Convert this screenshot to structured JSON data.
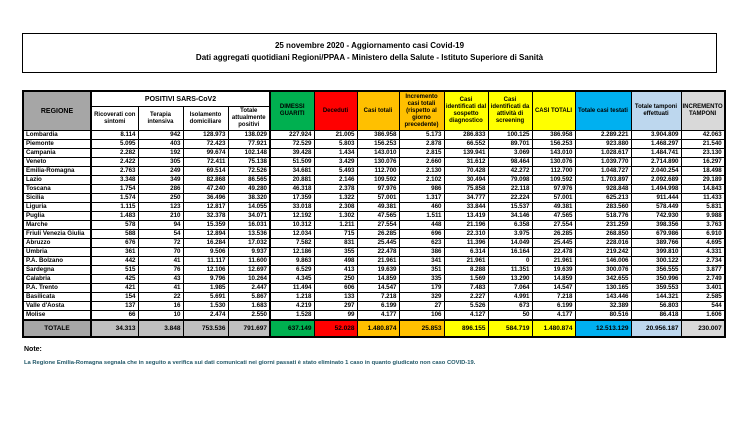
{
  "title": {
    "line1": "25 novembre 2020 - Aggiornamento casi Covid-19",
    "line2": "Dati aggregati quotidiani Regioni/PPAA - Ministero della Salute - Istituto Superiore di Sanità"
  },
  "table": {
    "region_header": "REGIONE",
    "group_header": "POSITIVI SARS-CoV2",
    "columns": [
      {
        "label": "Ricoverati con sintomi",
        "header_bg": "#FFFFFF",
        "total_bg": "#BFBFBF",
        "in_group": true
      },
      {
        "label": "Terapia intensiva",
        "header_bg": "#FFFFFF",
        "total_bg": "#BFBFBF",
        "in_group": true
      },
      {
        "label": "Isolamento domiciliare",
        "header_bg": "#FFFFFF",
        "total_bg": "#BFBFBF",
        "in_group": true
      },
      {
        "label": "Totale attualmente positivi",
        "header_bg": "#FFFFFF",
        "total_bg": "#BFBFBF",
        "in_group": true
      },
      {
        "label": "DIMESSI GUARITI",
        "header_bg": "#00B050",
        "total_bg": "#00B050",
        "in_group": false
      },
      {
        "label": "Deceduti",
        "header_bg": "#FF0000",
        "total_bg": "#FF0000",
        "in_group": false
      },
      {
        "label": "Casi totali",
        "header_bg": "#FFC000",
        "total_bg": "#FFC000",
        "in_group": false
      },
      {
        "label": "Incremento casi totali (rispetto al giorno precedente)",
        "header_bg": "#FFC000",
        "total_bg": "#FFC000",
        "in_group": false
      },
      {
        "label": "Casi identificati dal sospetto diagnostico",
        "header_bg": "#FFFF00",
        "total_bg": "#FFFF00",
        "in_group": false
      },
      {
        "label": "Casi identificati da attività di screening",
        "header_bg": "#FFFF00",
        "total_bg": "#FFFF00",
        "in_group": false
      },
      {
        "label": "CASI TOTALI",
        "header_bg": "#FFFF00",
        "total_bg": "#FFFF00",
        "in_group": false
      },
      {
        "label": "Totale casi testati",
        "header_bg": "#00B0F0",
        "total_bg": "#00B0F0",
        "in_group": false
      },
      {
        "label": "Totale tamponi effettuati",
        "header_bg": "#BDD7EE",
        "total_bg": "#BDD7EE",
        "in_group": false
      },
      {
        "label": "INCREMENTO TAMPONI",
        "header_bg": "#D9D9D9",
        "total_bg": "#D9D9D9",
        "in_group": false
      }
    ],
    "rows": [
      {
        "region": "Lombardia",
        "values": [
          "8.114",
          "942",
          "128.973",
          "138.029",
          "227.924",
          "21.005",
          "386.958",
          "5.173",
          "286.833",
          "100.125",
          "386.958",
          "2.289.221",
          "3.904.809",
          "42.063"
        ]
      },
      {
        "region": "Piemonte",
        "values": [
          "5.095",
          "403",
          "72.423",
          "77.921",
          "72.529",
          "5.803",
          "156.253",
          "2.878",
          "66.552",
          "89.701",
          "156.253",
          "923.880",
          "1.468.297",
          "21.540"
        ]
      },
      {
        "region": "Campania",
        "values": [
          "2.282",
          "192",
          "99.674",
          "102.148",
          "39.428",
          "1.434",
          "143.010",
          "2.815",
          "139.941",
          "3.069",
          "143.010",
          "1.028.617",
          "1.484.741",
          "23.130"
        ]
      },
      {
        "region": "Veneto",
        "values": [
          "2.422",
          "305",
          "72.411",
          "75.138",
          "51.509",
          "3.429",
          "130.076",
          "2.660",
          "31.612",
          "98.464",
          "130.076",
          "1.039.770",
          "2.714.890",
          "16.297"
        ]
      },
      {
        "region": "Emilia-Romagna",
        "values": [
          "2.763",
          "249",
          "69.514",
          "72.526",
          "34.681",
          "5.493",
          "112.700",
          "2.130",
          "70.428",
          "42.272",
          "112.700",
          "1.048.727",
          "2.040.254",
          "18.498"
        ]
      },
      {
        "region": "Lazio",
        "values": [
          "3.348",
          "349",
          "82.868",
          "86.565",
          "20.881",
          "2.146",
          "109.592",
          "2.102",
          "30.494",
          "79.098",
          "109.592",
          "1.703.897",
          "2.092.689",
          "29.189"
        ]
      },
      {
        "region": "Toscana",
        "values": [
          "1.754",
          "286",
          "47.240",
          "49.280",
          "46.318",
          "2.378",
          "97.976",
          "986",
          "75.858",
          "22.118",
          "97.976",
          "928.848",
          "1.494.998",
          "14.843"
        ]
      },
      {
        "region": "Sicilia",
        "values": [
          "1.574",
          "250",
          "36.496",
          "38.320",
          "17.359",
          "1.322",
          "57.001",
          "1.317",
          "34.777",
          "22.224",
          "57.001",
          "625.213",
          "911.444",
          "11.433"
        ]
      },
      {
        "region": "Liguria",
        "values": [
          "1.115",
          "123",
          "12.817",
          "14.055",
          "33.018",
          "2.308",
          "49.381",
          "460",
          "33.844",
          "15.537",
          "49.381",
          "283.560",
          "578.449",
          "5.831"
        ]
      },
      {
        "region": "Puglia",
        "values": [
          "1.483",
          "210",
          "32.378",
          "34.071",
          "12.192",
          "1.302",
          "47.565",
          "1.511",
          "13.419",
          "34.146",
          "47.565",
          "518.776",
          "742.930",
          "9.988"
        ]
      },
      {
        "region": "Marche",
        "values": [
          "578",
          "94",
          "15.359",
          "16.031",
          "10.312",
          "1.211",
          "27.554",
          "448",
          "21.196",
          "6.358",
          "27.554",
          "231.259",
          "398.356",
          "3.763"
        ]
      },
      {
        "region": "Friuli Venezia Giulia",
        "values": [
          "588",
          "54",
          "12.894",
          "13.536",
          "12.034",
          "715",
          "26.285",
          "696",
          "22.310",
          "3.975",
          "26.285",
          "268.850",
          "679.986",
          "6.910"
        ]
      },
      {
        "region": "Abruzzo",
        "values": [
          "676",
          "72",
          "16.284",
          "17.032",
          "7.582",
          "831",
          "25.445",
          "623",
          "11.396",
          "14.049",
          "25.445",
          "228.016",
          "389.766",
          "4.695"
        ]
      },
      {
        "region": "Umbria",
        "values": [
          "361",
          "70",
          "9.506",
          "9.937",
          "12.186",
          "355",
          "22.478",
          "386",
          "6.314",
          "16.164",
          "22.478",
          "219.242",
          "399.810",
          "4.331"
        ]
      },
      {
        "region": "P.A. Bolzano",
        "values": [
          "442",
          "41",
          "11.117",
          "11.600",
          "9.863",
          "498",
          "21.961",
          "341",
          "21.961",
          "0",
          "21.961",
          "146.006",
          "300.122",
          "2.734"
        ]
      },
      {
        "region": "Sardegna",
        "values": [
          "515",
          "76",
          "12.106",
          "12.697",
          "6.529",
          "413",
          "19.639",
          "351",
          "8.288",
          "11.351",
          "19.639",
          "300.076",
          "356.555",
          "3.877"
        ]
      },
      {
        "region": "Calabria",
        "values": [
          "425",
          "43",
          "9.796",
          "10.264",
          "4.345",
          "250",
          "14.859",
          "335",
          "1.569",
          "13.290",
          "14.859",
          "342.655",
          "350.996",
          "2.749"
        ]
      },
      {
        "region": "P.A. Trento",
        "values": [
          "421",
          "41",
          "1.985",
          "2.447",
          "11.494",
          "606",
          "14.547",
          "179",
          "7.483",
          "7.064",
          "14.547",
          "130.165",
          "359.553",
          "3.401"
        ]
      },
      {
        "region": "Basilicata",
        "values": [
          "154",
          "22",
          "5.691",
          "5.867",
          "1.218",
          "133",
          "7.218",
          "329",
          "2.227",
          "4.991",
          "7.218",
          "143.446",
          "144.321",
          "2.585"
        ]
      },
      {
        "region": "Valle d'Aosta",
        "values": [
          "137",
          "16",
          "1.530",
          "1.683",
          "4.219",
          "297",
          "6.199",
          "27",
          "5.526",
          "673",
          "6.199",
          "32.389",
          "56.803",
          "544"
        ]
      },
      {
        "region": "Molise",
        "values": [
          "66",
          "10",
          "2.474",
          "2.550",
          "1.528",
          "99",
          "4.177",
          "106",
          "4.127",
          "50",
          "4.177",
          "80.516",
          "86.418",
          "1.606"
        ]
      }
    ],
    "total_label": "TOTALE",
    "totals": [
      "34.313",
      "3.848",
      "753.536",
      "791.697",
      "637.149",
      "52.028",
      "1.480.874",
      "25.853",
      "896.155",
      "584.719",
      "1.480.874",
      "12.513.129",
      "20.956.187",
      "230.007"
    ],
    "region_header_bg": "#A6A6A6",
    "total_label_bg": "#A6A6A6"
  },
  "note": {
    "label": "Note:",
    "text": "La Regione Emilia-Romagna segnala che in seguito a verifica sui dati comunicati nei giorni passati è stato eliminato 1 caso in quanto giudicato non caso COVID-19."
  }
}
